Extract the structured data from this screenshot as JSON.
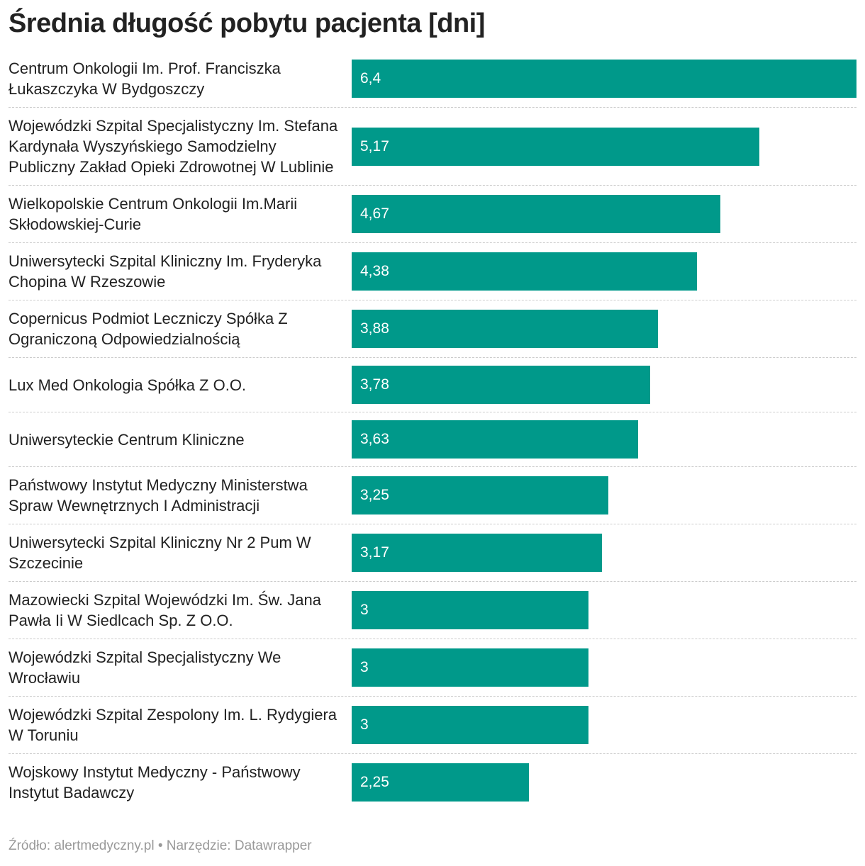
{
  "chart_data": {
    "type": "bar",
    "orientation": "horizontal",
    "title": "Średnia długość pobytu pacjenta [dni]",
    "categories": [
      "Centrum Onkologii Im. Prof. Franciszka Łukaszczyka W Bydgoszczy",
      "Wojewódzki Szpital Specjalistyczny Im. Stefana Kardynała Wyszyńskiego Samodzielny Publiczny Zakład Opieki Zdrowotnej W Lublinie",
      "Wielkopolskie Centrum Onkologii Im.Marii Skłodowskiej-Curie",
      "Uniwersytecki Szpital Kliniczny Im. Fryderyka Chopina W Rzeszowie",
      "Copernicus Podmiot Leczniczy Spółka Z Ograniczoną Odpowiedzialnością",
      "Lux Med Onkologia Spółka Z O.O.",
      "Uniwersyteckie Centrum Kliniczne",
      "Państwowy Instytut Medyczny Ministerstwa Spraw Wewnętrznych I Administracji",
      "Uniwersytecki Szpital Kliniczny Nr 2 Pum W Szczecinie",
      "Mazowiecki Szpital Wojewódzki Im. Św. Jana Pawła Ii W Siedlcach Sp. Z O.O.",
      "Wojewódzki Szpital Specjalistyczny We Wrocławiu",
      "Wojewódzki Szpital Zespolony Im. L. Rydygiera W Toruniu",
      "Wojskowy Instytut Medyczny - Państwowy Instytut Badawczy"
    ],
    "values": [
      6.4,
      5.17,
      4.67,
      4.38,
      3.88,
      3.78,
      3.63,
      3.25,
      3.17,
      3,
      3,
      3,
      2.25
    ],
    "value_labels": [
      "6,4",
      "5,17",
      "4,67",
      "4,38",
      "3,88",
      "3,78",
      "3,63",
      "3,25",
      "3,17",
      "3",
      "3",
      "3",
      "2,25"
    ],
    "color": "#00998a",
    "footer": "Źródło: alertmedyczny.pl • Narzędzie: Datawrapper"
  }
}
